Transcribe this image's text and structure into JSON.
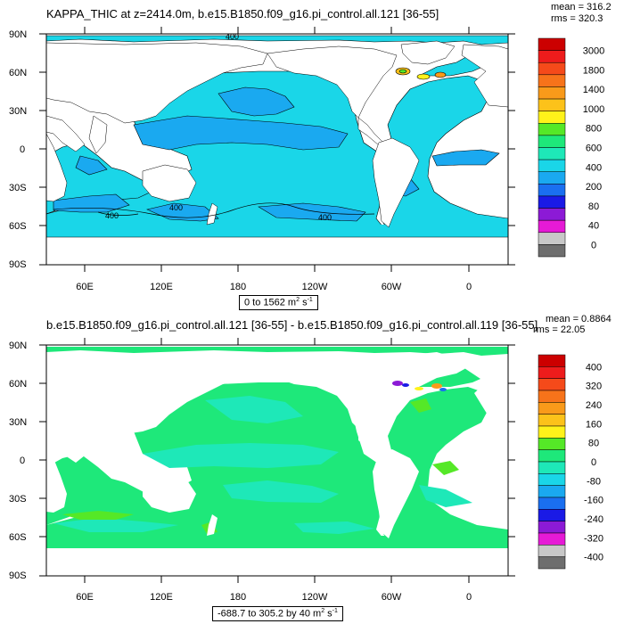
{
  "panels": [
    {
      "title": "KAPPA_THIC at z=2414.0m, b.e15.B1850.f09_g16.pi_control.all.121 [36-55]",
      "mean": "mean = 316.2",
      "rms": "rms = 320.3",
      "range": "0 to 1562 m² s⁻¹",
      "range_main": "0 to 1562 m",
      "units": "s",
      "contour_labels": [
        "400",
        "400",
        "400",
        "400"
      ],
      "colorbar": {
        "labels": [
          "3000",
          "1800",
          "1400",
          "1000",
          "800",
          "600",
          "400",
          "200",
          "80",
          "40",
          "0"
        ],
        "colors": [
          "#cc0000",
          "#ee1c1c",
          "#f54a1a",
          "#f7731a",
          "#f99a1a",
          "#fcc21a",
          "#fff21a",
          "#55e827",
          "#1ee87a",
          "#1ee8b8",
          "#1ad6e8",
          "#1aa9f0",
          "#1a6ff0",
          "#1a1ae6",
          "#8c1ad6",
          "#e61ad6",
          "#c8c8c8",
          "#6e6e6e"
        ]
      }
    },
    {
      "title": "b.e15.B1850.f09_g16.pi_control.all.121 [36-55] - b.e15.B1850.f09_g16.pi_control.all.119 [36-55]",
      "mean": "mean = 0.8864",
      "rms": "rms = 22.05",
      "range": "-688.7 to 305.2 by 40 m² s⁻¹",
      "range_main": "-688.7 to 305.2 by 40 m",
      "units": "s",
      "colorbar": {
        "labels": [
          "400",
          "320",
          "240",
          "160",
          "80",
          "0",
          "-80",
          "-160",
          "-240",
          "-320",
          "-400"
        ],
        "colors": [
          "#cc0000",
          "#ee1c1c",
          "#f54a1a",
          "#f7731a",
          "#f99a1a",
          "#fcc21a",
          "#fff21a",
          "#55e827",
          "#1ee87a",
          "#1ee8b8",
          "#1ad6e8",
          "#1aa9f0",
          "#1a6ff0",
          "#1a1ae6",
          "#8c1ad6",
          "#e61ad6",
          "#c8c8c8",
          "#6e6e6e"
        ]
      }
    }
  ],
  "axes": {
    "lat_labels": [
      "90N",
      "60N",
      "30N",
      "0",
      "30S",
      "60S",
      "90S"
    ],
    "lon_labels": [
      "60E",
      "120E",
      "180",
      "120W",
      "60W",
      "0"
    ]
  },
  "chart_data": [
    {
      "type": "heatmap",
      "title": "KAPPA_THIC at z=2414.0m, b.e15.B1850.f09_g16.pi_control.all.121 [36-55]",
      "projection": "cylindrical equidistant",
      "lon_range": [
        30,
        390
      ],
      "lat_range": [
        -90,
        90
      ],
      "levels": [
        0,
        40,
        80,
        200,
        400,
        600,
        800,
        1000,
        1400,
        1800,
        3000
      ],
      "min": 0,
      "max": 1562,
      "mean": 316.2,
      "rms": 320.3,
      "units": "m^2 s^-1"
    },
    {
      "type": "heatmap",
      "title": "b.e15.B1850.f09_g16.pi_control.all.121 [36-55] - b.e15.B1850.f09_g16.pi_control.all.119 [36-55]",
      "projection": "cylindrical equidistant",
      "lon_range": [
        30,
        390
      ],
      "lat_range": [
        -90,
        90
      ],
      "levels": [
        -400,
        -320,
        -240,
        -160,
        -80,
        0,
        80,
        160,
        240,
        320,
        400
      ],
      "contour_interval": 40,
      "min": -688.7,
      "max": 305.2,
      "mean": 0.8864,
      "rms": 22.05,
      "units": "m^2 s^-1"
    }
  ]
}
